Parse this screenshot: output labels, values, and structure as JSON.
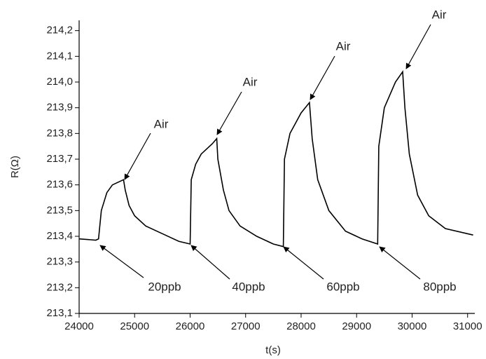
{
  "chart_data": {
    "type": "line",
    "xlabel": "t(s)",
    "ylabel": "R(Ω)",
    "x": [
      24000,
      24300,
      24350,
      24400,
      24500,
      24600,
      24800,
      24830,
      24900,
      25000,
      25200,
      25500,
      25800,
      26000,
      26020,
      26100,
      26200,
      26400,
      26480,
      26500,
      26600,
      26700,
      26900,
      27200,
      27500,
      27680,
      27700,
      27800,
      28000,
      28150,
      28200,
      28300,
      28500,
      28800,
      29100,
      29380,
      29400,
      29500,
      29700,
      29830,
      29870,
      29950,
      30100,
      30300,
      30600,
      31100
    ],
    "values": [
      213.39,
      213.385,
      213.39,
      213.5,
      213.57,
      213.6,
      213.62,
      213.58,
      213.52,
      213.48,
      213.44,
      213.41,
      213.38,
      213.37,
      213.62,
      213.68,
      213.72,
      213.76,
      213.78,
      213.7,
      213.58,
      213.5,
      213.44,
      213.4,
      213.37,
      213.36,
      213.7,
      213.8,
      213.88,
      213.92,
      213.78,
      213.62,
      213.5,
      213.42,
      213.39,
      213.37,
      213.75,
      213.9,
      214.0,
      214.04,
      213.9,
      213.72,
      213.56,
      213.48,
      213.43,
      213.405
    ],
    "color": "#000000",
    "xlim": [
      24000,
      31130
    ],
    "ylim": [
      213.1,
      214.24
    ],
    "xticks": [
      24000,
      25000,
      26000,
      27000,
      28000,
      29000,
      30000,
      31000
    ],
    "yticks": [
      {
        "value": 213.1,
        "label": "213,1"
      },
      {
        "value": 213.2,
        "label": "213,2"
      },
      {
        "value": 213.3,
        "label": "213,3"
      },
      {
        "value": 213.4,
        "label": "213,4"
      },
      {
        "value": 213.5,
        "label": "213,5"
      },
      {
        "value": 213.6,
        "label": "213,6"
      },
      {
        "value": 213.7,
        "label": "213,7"
      },
      {
        "value": 213.8,
        "label": "213,8"
      },
      {
        "value": 213.9,
        "label": "213,9"
      },
      {
        "value": 214.0,
        "label": "214,0"
      },
      {
        "value": 214.1,
        "label": "214,1"
      },
      {
        "value": 214.2,
        "label": "214,2"
      }
    ],
    "annotations": [
      "Air",
      "Air",
      "Air",
      "Air",
      "20ppb",
      "40ppb",
      "60ppb",
      "80ppb"
    ]
  }
}
